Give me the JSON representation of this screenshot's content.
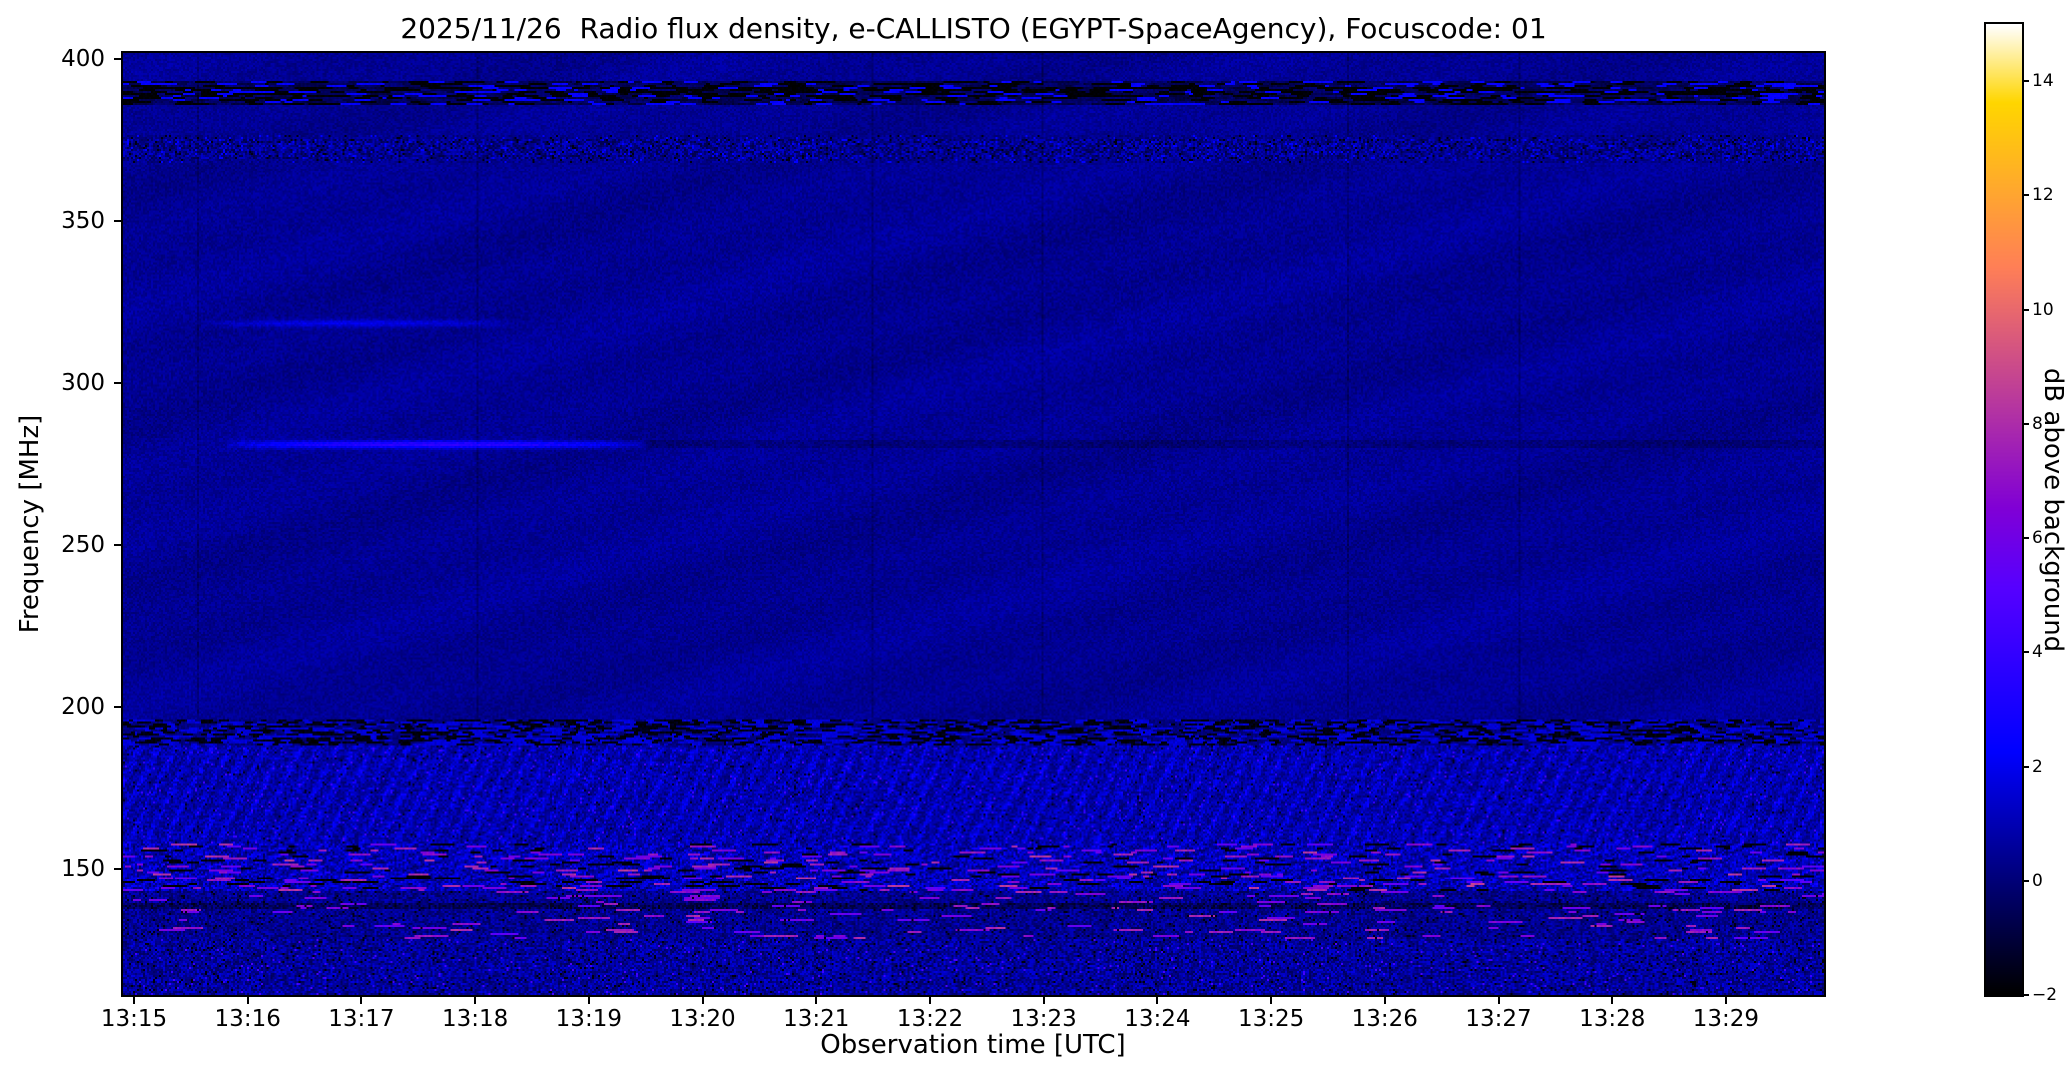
{
  "figure": {
    "title": "2025/11/26  Radio flux density, e-CALLISTO (EGYPT-SpaceAgency), Focuscode: 01",
    "xlabel": "Observation time [UTC]",
    "ylabel": "Frequency [MHz]",
    "colorbar_label": "dB above background"
  },
  "chart_data": {
    "type": "heatmap",
    "title": "2025/11/26  Radio flux density, e-CALLISTO (EGYPT-SpaceAgency), Focuscode: 01",
    "xlabel": "Observation time [UTC]",
    "ylabel": "Frequency [MHz]",
    "colorbar_label": "dB above background",
    "x_ticks": [
      "13:15",
      "13:16",
      "13:17",
      "13:18",
      "13:19",
      "13:20",
      "13:21",
      "13:22",
      "13:23",
      "13:24",
      "13:25",
      "13:26",
      "13:27",
      "13:28",
      "13:29"
    ],
    "x_range_utc": [
      "13:15:00",
      "13:29:52"
    ],
    "y_ticks": [
      400,
      350,
      300,
      250,
      200,
      150
    ],
    "y_range_mhz": [
      111,
      402
    ],
    "colormap": "gnuplot2",
    "color_range_db": [
      -2,
      15
    ],
    "colorbar_ticks": [
      14,
      12,
      10,
      8,
      6,
      4,
      2,
      0,
      -2
    ],
    "background_level_db": 0.5,
    "grid": false,
    "features": [
      {
        "kind": "emission-line",
        "freq_mhz": 281,
        "time_range_min": [
          0.9,
          4.6
        ],
        "peak_db": 3.2,
        "note": "bright narrowband line near 280 MHz, 13:16-13:19, faint dark trace afterwards"
      },
      {
        "kind": "faint-line",
        "freq_mhz": 318.5,
        "time_range_min": [
          0.7,
          3.4
        ],
        "peak_db": 1.5,
        "note": "very faint brighter line near 320 MHz around 13:16-13:18"
      },
      {
        "kind": "rfi-band",
        "freq_range_mhz": [
          386,
          393.5
        ],
        "character": "dark dashed interference band with black and occasional bright blue dashes"
      },
      {
        "kind": "rfi-band",
        "freq_range_mhz": [
          368,
          377
        ],
        "character": "fine speckle rows"
      },
      {
        "kind": "rfi-band",
        "freq_range_mhz": [
          188,
          196
        ],
        "character": "dense speckle band"
      },
      {
        "kind": "rfi-band",
        "freq_range_mhz": [
          158,
          188
        ],
        "character": "strong blue striped interference"
      },
      {
        "kind": "rfi-band",
        "freq_range_mhz": [
          143,
          158
        ],
        "character": "intense mixed band: black patches, blue noise, magenta streaks"
      },
      {
        "kind": "rfi-band",
        "freq_range_mhz": [
          128,
          143
        ],
        "character": "noisy band with sporadic magenta dashes and dark row near 138 MHz"
      },
      {
        "kind": "rfi-band",
        "freq_range_mhz": [
          111,
          128
        ],
        "character": "noisy blue-purple bottom band with black patches"
      },
      {
        "kind": "vertical-lines",
        "times_min": [
          0.66,
          3.11,
          6.6,
          8.1,
          10.8,
          12.3
        ],
        "note": "faint dark vertical instrument lines"
      }
    ]
  }
}
